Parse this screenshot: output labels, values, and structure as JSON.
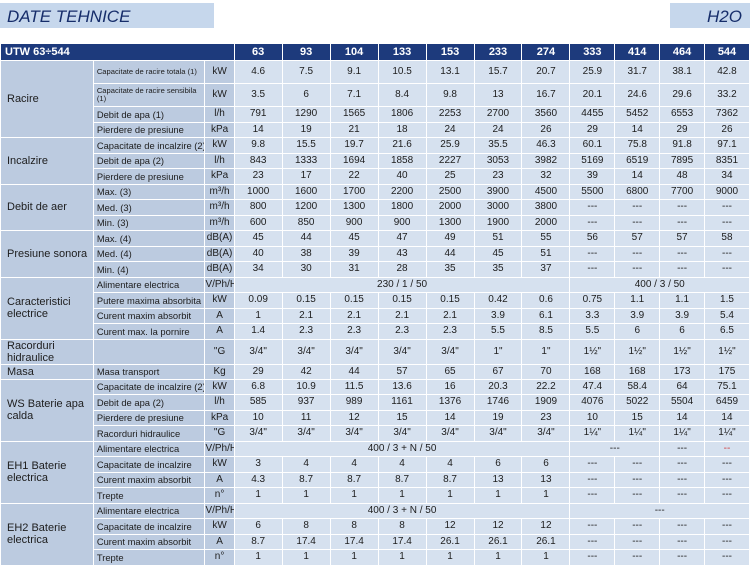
{
  "header": {
    "title": "DATE TEHNICE",
    "model": "H2O"
  },
  "table": {
    "model_label": "UTW 63÷544",
    "models": [
      "63",
      "93",
      "104",
      "133",
      "153",
      "233",
      "274",
      "333",
      "414",
      "464",
      "544"
    ],
    "groups": [
      {
        "name": "Racire",
        "rows": [
          {
            "label": "Capacitate de racire totala (1)",
            "unit": "kW",
            "values": [
              "4.6",
              "7.5",
              "9.1",
              "10.5",
              "13.1",
              "15.7",
              "20.7",
              "25.9",
              "31.7",
              "38.1",
              "42.8"
            ]
          },
          {
            "label": "Capacitate de racire sensibila (1)",
            "unit": "kW",
            "values": [
              "3.5",
              "6",
              "7.1",
              "8.4",
              "9.8",
              "13",
              "16.7",
              "20.1",
              "24.6",
              "29.6",
              "33.2"
            ]
          },
          {
            "label": "Debit de apa (1)",
            "unit": "l/h",
            "values": [
              "791",
              "1290",
              "1565",
              "1806",
              "2253",
              "2700",
              "3560",
              "4455",
              "5452",
              "6553",
              "7362"
            ]
          },
          {
            "label": "Pierdere de presiune",
            "unit": "kPa",
            "values": [
              "14",
              "19",
              "21",
              "18",
              "24",
              "24",
              "26",
              "29",
              "14",
              "29",
              "26"
            ]
          }
        ]
      },
      {
        "name": "Incalzire",
        "rows": [
          {
            "label": "Capacitate de incalzire (2)",
            "unit": "kW",
            "values": [
              "9.8",
              "15.5",
              "19.7",
              "21.6",
              "25.9",
              "35.5",
              "46.3",
              "60.1",
              "75.8",
              "91.8",
              "97.1"
            ]
          },
          {
            "label": "Debit de apa (2)",
            "unit": "l/h",
            "values": [
              "843",
              "1333",
              "1694",
              "1858",
              "2227",
              "3053",
              "3982",
              "5169",
              "6519",
              "7895",
              "8351"
            ]
          },
          {
            "label": "Pierdere de presiune",
            "unit": "kPa",
            "values": [
              "23",
              "17",
              "22",
              "40",
              "25",
              "23",
              "32",
              "39",
              "14",
              "48",
              "34"
            ]
          }
        ]
      },
      {
        "name": "Debit de aer",
        "rows": [
          {
            "label": "Max. (3)",
            "unit": "m³/h",
            "values": [
              "1000",
              "1600",
              "1700",
              "2200",
              "2500",
              "3900",
              "4500",
              "5500",
              "6800",
              "7700",
              "9000"
            ]
          },
          {
            "label": "Med. (3)",
            "unit": "m³/h",
            "values": [
              "800",
              "1200",
              "1300",
              "1800",
              "2000",
              "3000",
              "3800",
              "---",
              "---",
              "---",
              "---"
            ]
          },
          {
            "label": "Min. (3)",
            "unit": "m³/h",
            "values": [
              "600",
              "850",
              "900",
              "900",
              "1300",
              "1900",
              "2000",
              "---",
              "---",
              "---",
              "---"
            ]
          }
        ]
      },
      {
        "name": "Presiune sonora",
        "rows": [
          {
            "label": "Max. (4)",
            "unit": "dB(A)",
            "values": [
              "45",
              "44",
              "45",
              "47",
              "49",
              "51",
              "55",
              "56",
              "57",
              "57",
              "58"
            ]
          },
          {
            "label": "Med. (4)",
            "unit": "dB(A)",
            "values": [
              "40",
              "38",
              "39",
              "43",
              "44",
              "45",
              "51",
              "---",
              "---",
              "---",
              "---"
            ]
          },
          {
            "label": "Min. (4)",
            "unit": "dB(A)",
            "values": [
              "34",
              "30",
              "31",
              "28",
              "35",
              "35",
              "37",
              "---",
              "---",
              "---",
              "---"
            ]
          }
        ]
      },
      {
        "name": "Caracteristici electrice",
        "rows": [
          {
            "label": "Alimentare electrica",
            "unit": "V/Ph/Hz",
            "span_a": "230 / 1 / 50",
            "span_b": "400 / 3 / 50"
          },
          {
            "label": "Putere maxima absorbita",
            "unit": "kW",
            "values": [
              "0.09",
              "0.15",
              "0.15",
              "0.15",
              "0.15",
              "0.42",
              "0.6",
              "0.75",
              "1.1",
              "1.1",
              "1.5"
            ]
          },
          {
            "label": "Curent maxim absorbit",
            "unit": "A",
            "values": [
              "1",
              "2.1",
              "2.1",
              "2.1",
              "2.1",
              "3.9",
              "6.1",
              "3.3",
              "3.9",
              "3.9",
              "5.4"
            ]
          },
          {
            "label": "Curent max. la pornire",
            "unit": "A",
            "values": [
              "1.4",
              "2.3",
              "2.3",
              "2.3",
              "2.3",
              "5.5",
              "8.5",
              "5.5",
              "6",
              "6",
              "6.5"
            ]
          }
        ]
      },
      {
        "name": "Racorduri hidraulice",
        "rows": [
          {
            "label": "",
            "unit": "\"G",
            "values": [
              "3/4\"",
              "3/4\"",
              "3/4\"",
              "3/4\"",
              "3/4\"",
              "1\"",
              "1\"",
              "1½\"",
              "1½\"",
              "1½\"",
              "1½\""
            ]
          }
        ]
      },
      {
        "name": "Masa",
        "rows": [
          {
            "label": "Masa transport",
            "unit": "Kg",
            "values": [
              "29",
              "42",
              "44",
              "57",
              "65",
              "67",
              "70",
              "168",
              "168",
              "173",
              "175"
            ]
          }
        ]
      },
      {
        "name": "WS Baterie apa calda",
        "rows": [
          {
            "label": "Capacitate de incalzire (2)",
            "unit": "kW",
            "values": [
              "6.8",
              "10.9",
              "11.5",
              "13.6",
              "16",
              "20.3",
              "22.2",
              "47.4",
              "58.4",
              "64",
              "75.1"
            ]
          },
          {
            "label": "Debit de apa (2)",
            "unit": "l/h",
            "values": [
              "585",
              "937",
              "989",
              "1161",
              "1376",
              "1746",
              "1909",
              "4076",
              "5022",
              "5504",
              "6459"
            ]
          },
          {
            "label": "Pierdere de presiune",
            "unit": "kPa",
            "values": [
              "10",
              "11",
              "12",
              "15",
              "14",
              "19",
              "23",
              "10",
              "15",
              "14",
              "14"
            ]
          },
          {
            "label": "Racorduri hidraulice",
            "unit": "\"G",
            "values": [
              "3/4\"",
              "3/4\"",
              "3/4\"",
              "3/4\"",
              "3/4\"",
              "3/4\"",
              "3/4\"",
              "1¼\"",
              "1¼\"",
              "1¼\"",
              "1¼\""
            ]
          }
        ]
      },
      {
        "name": "EH1 Baterie electrica",
        "rows": [
          {
            "label": "Alimentare electrica",
            "unit": "V/Ph/Hz",
            "span_a": "400 / 3 + N / 50",
            "extra": [
              "---",
              "---",
              "--"
            ]
          },
          {
            "label": "Capacitate de incalzire",
            "unit": "kW",
            "values": [
              "3",
              "4",
              "4",
              "4",
              "4",
              "6",
              "6",
              "---",
              "---",
              "---",
              "---"
            ]
          },
          {
            "label": "Curent maxim absorbit",
            "unit": "A",
            "values": [
              "4.3",
              "8.7",
              "8.7",
              "8.7",
              "8.7",
              "13",
              "13",
              "---",
              "---",
              "---",
              "---"
            ]
          },
          {
            "label": "Trepte",
            "unit": "n°",
            "values": [
              "1",
              "1",
              "1",
              "1",
              "1",
              "1",
              "1",
              "---",
              "---",
              "---",
              "---"
            ]
          }
        ]
      },
      {
        "name": "EH2 Baterie electrica",
        "rows": [
          {
            "label": "Alimentare electrica",
            "unit": "V/Ph/Hz",
            "span_a": "400 / 3 + N / 50",
            "span_b": "---"
          },
          {
            "label": "Capacitate de incalzire",
            "unit": "kW",
            "values": [
              "6",
              "8",
              "8",
              "8",
              "12",
              "12",
              "12",
              "---",
              "---",
              "---",
              "---"
            ]
          },
          {
            "label": "Curent maxim absorbit",
            "unit": "A",
            "values": [
              "8.7",
              "17.4",
              "17.4",
              "17.4",
              "26.1",
              "26.1",
              "26.1",
              "---",
              "---",
              "---",
              "---"
            ]
          },
          {
            "label": "Trepte",
            "unit": "n°",
            "values": [
              "1",
              "1",
              "1",
              "1",
              "1",
              "1",
              "1",
              "---",
              "---",
              "---",
              "---"
            ]
          }
        ]
      }
    ]
  }
}
